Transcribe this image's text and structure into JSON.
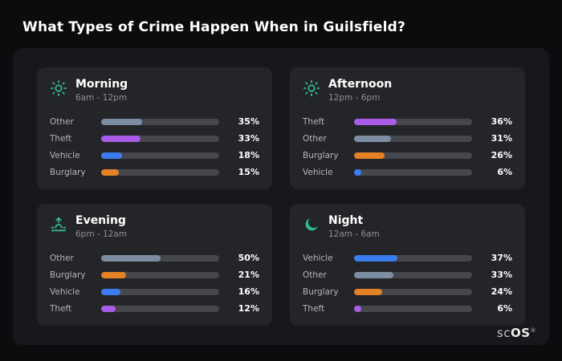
{
  "page": {
    "title": "What Types of Crime Happen When in Guilsfield?",
    "brand_prefix": "sc",
    "brand_suffix": "OS",
    "brand_superscript": "®"
  },
  "colors": {
    "background": "#0b0c0e",
    "panel": "#17181b",
    "card": "#232528",
    "track": "#45474d",
    "accent_icon": "#34b78f",
    "theft": "#a95ce8",
    "other": "#7d8da1",
    "vehicle": "#3b7df0",
    "burglary": "#e28125"
  },
  "chart_data": [
    {
      "type": "bar",
      "title": "Morning",
      "subtitle": "6am - 12pm",
      "icon": "sun-icon",
      "categories": [
        "Other",
        "Theft",
        "Vehicle",
        "Burglary"
      ],
      "values": [
        35,
        33,
        18,
        15
      ],
      "unit": "%",
      "xlim": [
        0,
        100
      ],
      "orientation": "horizontal"
    },
    {
      "type": "bar",
      "title": "Afternoon",
      "subtitle": "12pm - 6pm",
      "icon": "sun-icon",
      "categories": [
        "Theft",
        "Other",
        "Burglary",
        "Vehicle"
      ],
      "values": [
        36,
        31,
        26,
        6
      ],
      "unit": "%",
      "xlim": [
        0,
        100
      ],
      "orientation": "horizontal"
    },
    {
      "type": "bar",
      "title": "Evening",
      "subtitle": "6pm - 12am",
      "icon": "sunset-icon",
      "categories": [
        "Other",
        "Burglary",
        "Vehicle",
        "Theft"
      ],
      "values": [
        50,
        21,
        16,
        12
      ],
      "unit": "%",
      "xlim": [
        0,
        100
      ],
      "orientation": "horizontal"
    },
    {
      "type": "bar",
      "title": "Night",
      "subtitle": "12am - 6am",
      "icon": "moon-icon",
      "categories": [
        "Vehicle",
        "Other",
        "Burglary",
        "Theft"
      ],
      "values": [
        37,
        33,
        24,
        6
      ],
      "unit": "%",
      "xlim": [
        0,
        100
      ],
      "orientation": "horizontal"
    }
  ]
}
